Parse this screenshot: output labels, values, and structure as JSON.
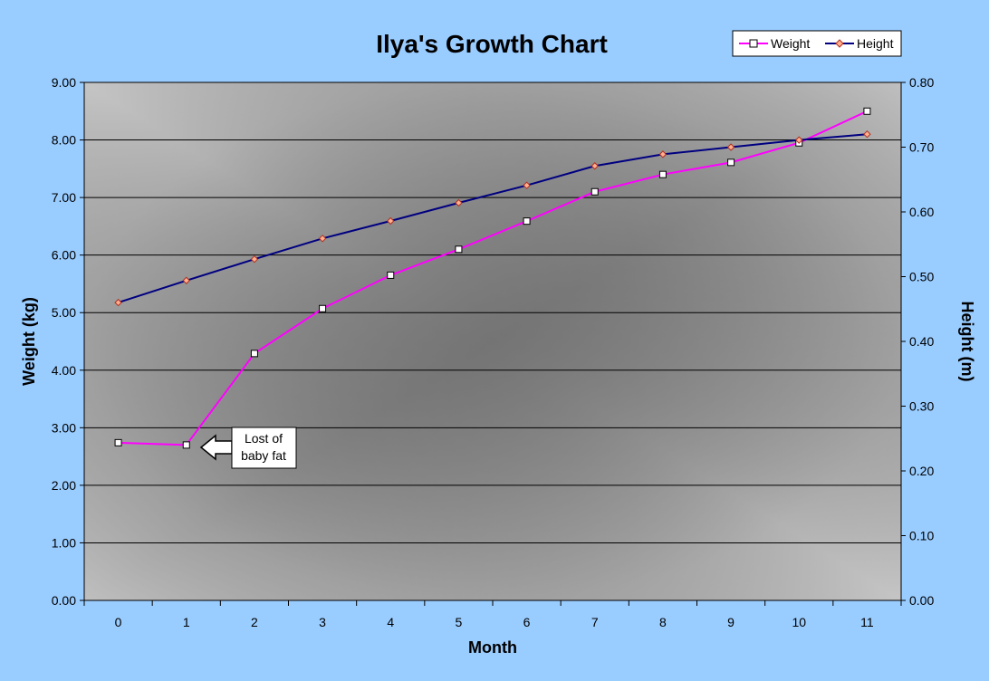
{
  "chart_data": {
    "type": "line",
    "title": "Ilya's Growth Chart",
    "xlabel": "Month",
    "ylabel": "Weight (kg)",
    "y2label": "Height (m)",
    "categories": [
      "0",
      "1",
      "2",
      "3",
      "4",
      "5",
      "6",
      "7",
      "8",
      "9",
      "10",
      "11"
    ],
    "ylim": [
      0,
      9
    ],
    "y2lim": [
      0,
      0.8
    ],
    "yticks": [
      "0.00",
      "1.00",
      "2.00",
      "3.00",
      "4.00",
      "5.00",
      "6.00",
      "7.00",
      "8.00",
      "9.00"
    ],
    "y2ticks": [
      "0.00",
      "0.10",
      "0.20",
      "0.30",
      "0.40",
      "0.50",
      "0.60",
      "0.70",
      "0.80"
    ],
    "grid": true,
    "legend_position": "top-right",
    "series": [
      {
        "name": "Weight",
        "axis": "left",
        "color": "#ff00ff",
        "marker": "square",
        "values": [
          2.74,
          2.7,
          4.29,
          5.07,
          5.65,
          6.1,
          6.59,
          7.1,
          7.4,
          7.61,
          7.95,
          8.5
        ]
      },
      {
        "name": "Height",
        "axis": "right",
        "color": "#000080",
        "marker": "diamond",
        "values": [
          0.46,
          0.494,
          0.527,
          0.559,
          0.586,
          0.614,
          0.641,
          0.671,
          0.689,
          0.7,
          0.711,
          0.72
        ]
      }
    ],
    "annotations": [
      {
        "text_lines": [
          "Lost of",
          "baby fat"
        ],
        "points_to_category": "1",
        "points_to_series": "Weight"
      }
    ]
  },
  "colors": {
    "page_background": "#99ccff",
    "plot_center": "#6f6f6f",
    "plot_edge": "#c4c4c4",
    "gridline": "#000000"
  }
}
